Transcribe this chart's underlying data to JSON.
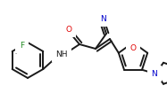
{
  "bg_color": "#ffffff",
  "line_color": "#1a1a1a",
  "atom_colors": {
    "O": "#e00000",
    "N": "#0000cc",
    "F": "#228B22"
  },
  "line_width": 1.4,
  "font_size": 6.5
}
